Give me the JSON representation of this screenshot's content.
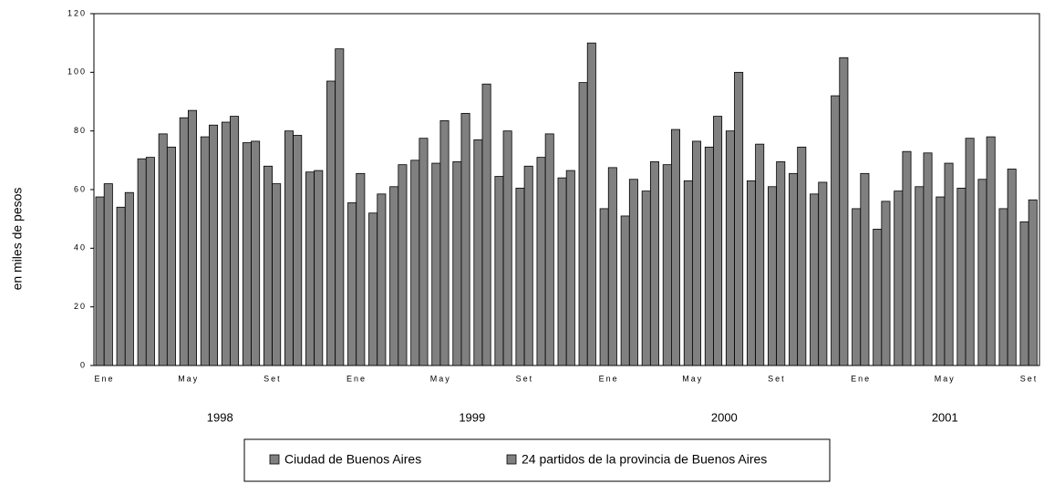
{
  "chart_data": {
    "type": "bar",
    "ylabel": "en miles de pesos",
    "categories": [
      "Ene",
      null,
      null,
      null,
      "May",
      null,
      null,
      null,
      "Set",
      null,
      null,
      null,
      "Ene",
      null,
      null,
      null,
      "May",
      null,
      null,
      null,
      "Set",
      null,
      null,
      null,
      "Ene",
      null,
      null,
      null,
      "May",
      null,
      null,
      null,
      "Set",
      null,
      null,
      null,
      "Ene",
      null,
      null,
      null,
      "May",
      null,
      null,
      null,
      "Set"
    ],
    "years": [
      "1998",
      "1999",
      "2000",
      "2001"
    ],
    "series": [
      {
        "name": "Ciudad de Buenos Aires",
        "color": "#808080",
        "values": [
          57.5,
          54,
          70.5,
          79,
          84.5,
          78,
          83,
          76,
          68,
          80,
          66,
          97,
          55.5,
          52,
          61,
          70,
          69,
          69.5,
          77,
          64.5,
          60.5,
          71,
          64,
          96.5,
          53.5,
          51,
          59.5,
          68.5,
          63,
          74.5,
          80,
          63,
          61,
          65.5,
          58.5,
          92,
          53.5,
          46.5,
          59.5,
          61,
          57.5,
          60.5,
          63.5,
          53.5,
          49
        ]
      },
      {
        "name": "24 partidos de la provincia de Buenos Aires",
        "color": "#808080",
        "values": [
          62,
          59,
          71,
          74.5,
          87,
          82,
          85,
          76.5,
          62,
          78.5,
          66.5,
          108,
          65.5,
          58.5,
          68.5,
          77.5,
          83.5,
          86,
          96,
          80,
          68,
          79,
          66.5,
          110,
          67.5,
          63.5,
          69.5,
          80.5,
          76.5,
          85,
          100,
          75.5,
          69.5,
          74.5,
          62.5,
          105,
          65.5,
          56,
          73,
          72.5,
          69,
          77.5,
          78,
          67,
          56.5
        ]
      }
    ],
    "ylim": [
      0,
      120
    ],
    "yticks": [
      0,
      20,
      40,
      60,
      80,
      100,
      120
    ],
    "grid": false,
    "legend": "bottom"
  }
}
